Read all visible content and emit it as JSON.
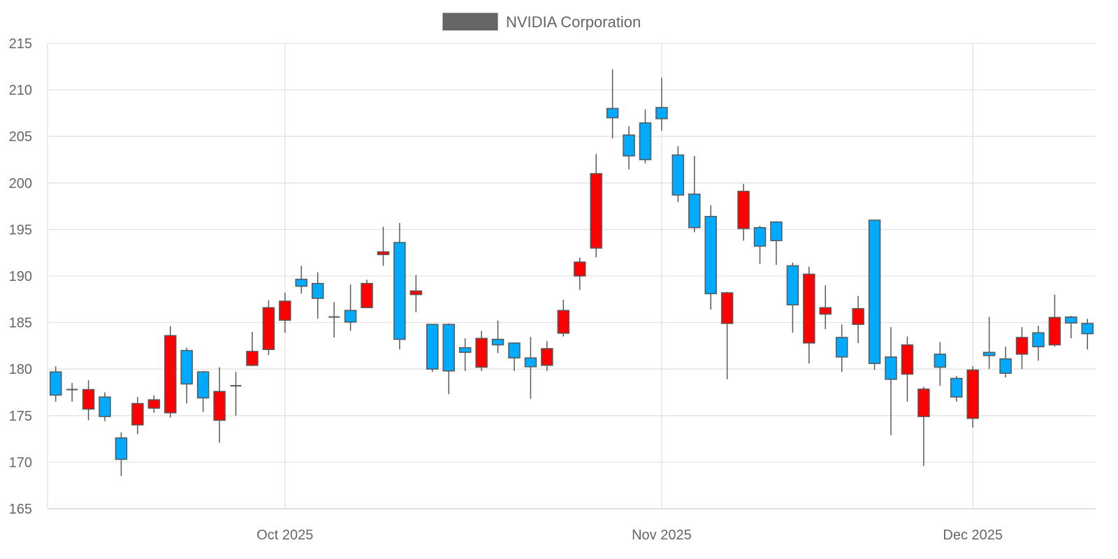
{
  "chart_data": {
    "type": "candlestick",
    "title": "",
    "legend": {
      "label": "NVIDIA Corporation",
      "color": "#666666",
      "position": "top-center"
    },
    "xlabel": "",
    "ylabel": "",
    "ylim": [
      165,
      215
    ],
    "yticks": [
      165,
      170,
      175,
      180,
      185,
      190,
      195,
      200,
      205,
      210,
      215
    ],
    "xticks": [
      {
        "label": "Oct 2025",
        "date": "2025-10-01"
      },
      {
        "label": "Nov 2025",
        "date": "2025-11-03"
      },
      {
        "label": "Dec 2025",
        "date": "2025-12-01"
      }
    ],
    "grid": true,
    "colors": {
      "increasing": "#ff0000",
      "decreasing": "#00aaff",
      "outline": "#595959",
      "grid": "#e2e2e2"
    },
    "fields": [
      "open",
      "high",
      "low",
      "close"
    ],
    "dates": [
      "2025-09-11",
      "2025-09-12",
      "2025-09-15",
      "2025-09-16",
      "2025-09-17",
      "2025-09-18",
      "2025-09-19",
      "2025-09-22",
      "2025-09-23",
      "2025-09-24",
      "2025-09-25",
      "2025-09-26",
      "2025-09-29",
      "2025-09-30",
      "2025-10-01",
      "2025-10-02",
      "2025-10-03",
      "2025-10-06",
      "2025-10-07",
      "2025-10-08",
      "2025-10-09",
      "2025-10-10",
      "2025-10-13",
      "2025-10-14",
      "2025-10-15",
      "2025-10-16",
      "2025-10-17",
      "2025-10-20",
      "2025-10-21",
      "2025-10-22",
      "2025-10-23",
      "2025-10-24",
      "2025-10-27",
      "2025-10-28",
      "2025-10-29",
      "2025-10-30",
      "2025-10-31",
      "2025-11-03",
      "2025-11-04",
      "2025-11-05",
      "2025-11-06",
      "2025-11-07",
      "2025-11-10",
      "2025-11-11",
      "2025-11-12",
      "2025-11-13",
      "2025-11-14",
      "2025-11-17",
      "2025-11-18",
      "2025-11-19",
      "2025-11-20",
      "2025-11-21",
      "2025-11-24",
      "2025-11-25",
      "2025-11-26",
      "2025-11-28",
      "2025-12-01",
      "2025-12-02",
      "2025-12-03",
      "2025-12-04",
      "2025-12-05",
      "2025-12-08",
      "2025-12-09",
      "2025-12-10"
    ],
    "ohlc": [
      [
        179.7,
        180.3,
        176.5,
        177.2
      ],
      [
        177.8,
        178.5,
        176.5,
        177.8
      ],
      [
        175.7,
        178.8,
        174.5,
        177.8
      ],
      [
        177.0,
        177.5,
        174.4,
        174.9
      ],
      [
        172.6,
        173.2,
        168.5,
        170.3
      ],
      [
        174.0,
        177.0,
        173.0,
        176.3
      ],
      [
        175.8,
        177.2,
        175.3,
        176.7
      ],
      [
        175.3,
        184.6,
        174.8,
        183.6
      ],
      [
        182.0,
        182.3,
        176.3,
        178.4
      ],
      [
        179.7,
        179.8,
        175.4,
        176.9
      ],
      [
        174.5,
        180.2,
        172.1,
        177.6
      ],
      [
        178.2,
        179.7,
        175.0,
        178.2
      ],
      [
        180.4,
        184.0,
        180.3,
        181.9
      ],
      [
        182.1,
        187.4,
        181.5,
        186.6
      ],
      [
        185.25,
        188.2,
        183.9,
        187.3
      ],
      [
        189.65,
        191.1,
        188.1,
        188.9
      ],
      [
        189.2,
        190.4,
        185.4,
        187.6
      ],
      [
        185.6,
        187.2,
        183.4,
        185.6
      ],
      [
        186.3,
        189.1,
        184.1,
        185.05
      ],
      [
        186.6,
        189.6,
        186.6,
        189.2
      ],
      [
        192.3,
        195.3,
        191.1,
        192.6
      ],
      [
        193.6,
        195.7,
        182.1,
        183.2
      ],
      [
        188.0,
        190.1,
        186.1,
        188.4
      ],
      [
        184.8,
        184.8,
        179.7,
        180.0
      ],
      [
        184.8,
        184.9,
        177.3,
        179.8
      ],
      [
        182.3,
        183.3,
        179.8,
        181.8
      ],
      [
        180.2,
        184.1,
        179.8,
        183.3
      ],
      [
        183.2,
        185.2,
        181.7,
        182.6
      ],
      [
        182.8,
        182.8,
        179.8,
        181.2
      ],
      [
        181.2,
        183.45,
        176.8,
        180.25
      ],
      [
        180.4,
        183.0,
        179.8,
        182.2
      ],
      [
        183.85,
        187.45,
        183.5,
        186.3
      ],
      [
        190.0,
        192.0,
        188.5,
        191.5
      ],
      [
        193.0,
        203.1,
        192.0,
        201.0
      ],
      [
        208.0,
        212.2,
        204.8,
        207.0
      ],
      [
        205.15,
        206.1,
        201.45,
        202.9
      ],
      [
        206.45,
        207.9,
        202.1,
        202.5
      ],
      [
        208.1,
        211.3,
        205.6,
        206.9
      ],
      [
        203.0,
        203.95,
        197.95,
        198.7
      ],
      [
        198.8,
        202.9,
        194.7,
        195.2
      ],
      [
        196.4,
        197.6,
        186.4,
        188.1
      ],
      [
        184.9,
        188.3,
        178.9,
        188.2
      ],
      [
        195.1,
        199.9,
        193.8,
        199.1
      ],
      [
        195.2,
        195.4,
        191.3,
        193.2
      ],
      [
        195.8,
        195.9,
        191.2,
        193.8
      ],
      [
        191.1,
        191.45,
        183.9,
        186.9
      ],
      [
        182.8,
        191.0,
        180.6,
        190.2
      ],
      [
        185.9,
        189.0,
        184.3,
        186.6
      ],
      [
        183.4,
        184.8,
        179.7,
        181.3
      ],
      [
        184.8,
        187.85,
        182.8,
        186.5
      ],
      [
        196.0,
        196.0,
        179.9,
        180.6
      ],
      [
        181.3,
        184.5,
        172.9,
        178.9
      ],
      [
        179.45,
        183.5,
        176.5,
        182.6
      ],
      [
        174.9,
        178.1,
        169.6,
        177.85
      ],
      [
        181.6,
        182.9,
        178.2,
        180.2
      ],
      [
        179.0,
        179.25,
        176.5,
        177.0
      ],
      [
        174.7,
        180.3,
        173.7,
        179.9
      ],
      [
        181.8,
        185.6,
        180.0,
        181.45
      ],
      [
        181.1,
        182.4,
        179.1,
        179.55
      ],
      [
        181.6,
        184.5,
        180.0,
        183.4
      ],
      [
        183.9,
        184.65,
        180.9,
        182.4
      ],
      [
        182.6,
        188.0,
        182.4,
        185.55
      ],
      [
        185.6,
        185.7,
        183.3,
        184.95
      ],
      [
        184.9,
        185.4,
        182.1,
        183.8
      ]
    ]
  }
}
